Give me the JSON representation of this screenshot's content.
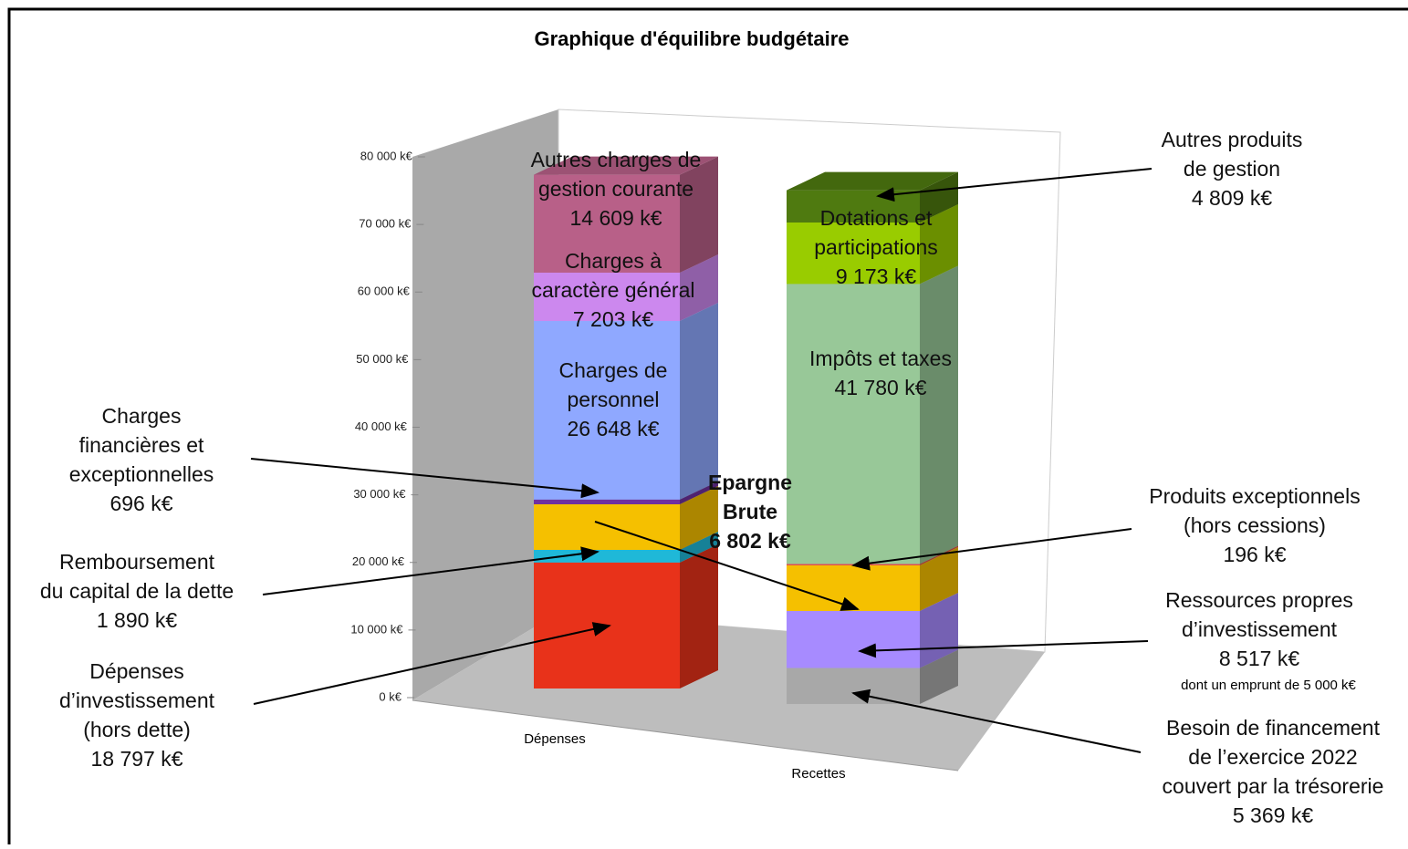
{
  "chart_data": {
    "type": "bar3d_stacked",
    "title": "Graphique d'équilibre budgétaire",
    "categories": [
      "Dépenses",
      "Recettes"
    ],
    "ylim": [
      0,
      80000
    ],
    "yticks": [
      {
        "value": 0,
        "label": "0 k€"
      },
      {
        "value": 10000,
        "label": "10 000 k€"
      },
      {
        "value": 20000,
        "label": "20 000 k€"
      },
      {
        "value": 30000,
        "label": "30 000 k€"
      },
      {
        "value": 40000,
        "label": "40 000 k€"
      },
      {
        "value": 50000,
        "label": "50 000 k€"
      },
      {
        "value": 60000,
        "label": "60 000 k€"
      },
      {
        "value": 70000,
        "label": "70 000 k€"
      },
      {
        "value": 80000,
        "label": "80 000 k€"
      }
    ],
    "series": [
      {
        "label": [
          "Dépenses",
          "d’investissement",
          "(hors dette)"
        ],
        "color": "#e8321a",
        "values": [
          18797,
          null
        ],
        "value_labels": [
          "18 797 k€",
          null
        ]
      },
      {
        "label": [
          "Remboursement",
          "du capital de la dette"
        ],
        "color": "#1fb8d8",
        "values": [
          1890,
          null
        ],
        "value_labels": [
          "1 890 k€",
          null
        ]
      },
      {
        "label": [
          "Besoin de financement",
          "de l’exercice 2022",
          "couvert par la trésorerie"
        ],
        "color": "#a8a8a8",
        "values": [
          null,
          5369
        ],
        "value_labels": [
          null,
          "5 369 k€"
        ]
      },
      {
        "label": [
          "Ressources propres",
          "d’investissement"
        ],
        "color": "#a78bff",
        "values": [
          null,
          8517
        ],
        "value_labels": [
          null,
          "8 517 k€"
        ],
        "note": "dont un emprunt de 5 000 k€"
      },
      {
        "label": [
          "Epargne",
          "Brute"
        ],
        "color": "#f5c000",
        "values": [
          6802,
          6802
        ],
        "value_labels": [
          "6 802 k€",
          null
        ]
      },
      {
        "label": [
          "Charges",
          "financières et",
          "exceptionnelles"
        ],
        "color": "#7030a0",
        "values": [
          696,
          null
        ],
        "value_labels": [
          "696 k€",
          null
        ]
      },
      {
        "label": [
          "Produits exceptionnels",
          "(hors cessions)"
        ],
        "color": "#e05050",
        "values": [
          null,
          196
        ],
        "value_labels": [
          null,
          "196 k€"
        ]
      },
      {
        "label": [
          "Charges de",
          "personnel"
        ],
        "color": "#8fa8ff",
        "values": [
          26648,
          null
        ],
        "value_labels": [
          "26 648 k€",
          null
        ]
      },
      {
        "label": [
          "Impôts et taxes"
        ],
        "color": "#98c898",
        "values": [
          null,
          41780
        ],
        "value_labels": [
          null,
          "41 780 k€"
        ]
      },
      {
        "label": [
          "Charges à",
          "caractère général"
        ],
        "color": "#cc88ee",
        "values": [
          7203,
          null
        ],
        "value_labels": [
          "7 203 k€",
          null
        ]
      },
      {
        "label": [
          "Dotations et",
          "participations"
        ],
        "color": "#99cc00",
        "values": [
          null,
          9173
        ],
        "value_labels": [
          null,
          "9 173 k€"
        ]
      },
      {
        "label": [
          "Autres charges de",
          "gestion courante"
        ],
        "color": "#b86088",
        "values": [
          14609,
          null
        ],
        "value_labels": [
          "14 609 k€",
          null
        ]
      },
      {
        "label": [
          "Autres produits",
          "de gestion"
        ],
        "color": "#4f7a10",
        "values": [
          null,
          4809
        ],
        "value_labels": [
          null,
          "4 809 k€"
        ]
      }
    ]
  }
}
